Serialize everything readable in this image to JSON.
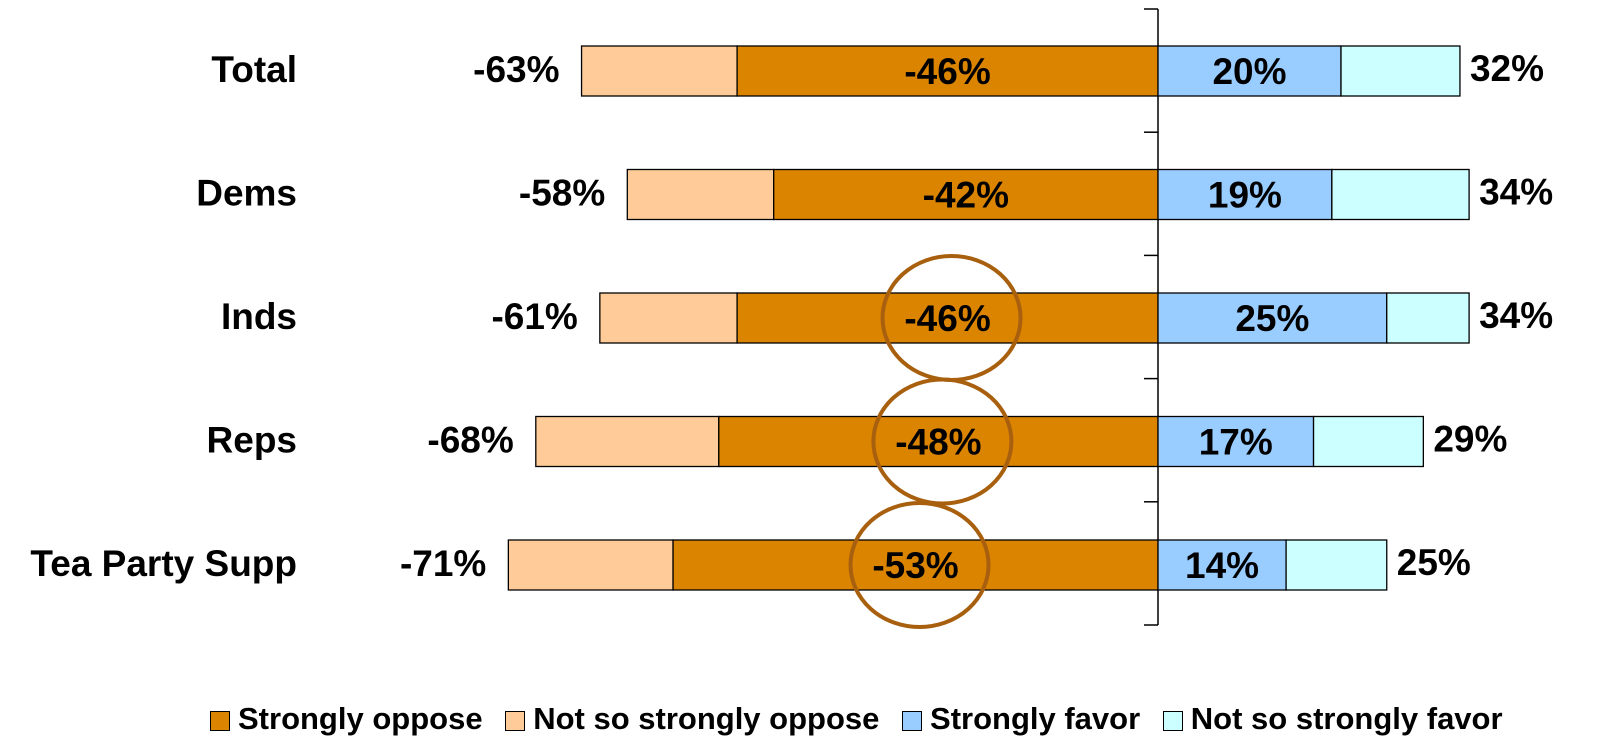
{
  "chart_data": {
    "type": "bar",
    "orientation": "horizontal",
    "stacked": "diverging",
    "categories": [
      "Total",
      "Dems",
      "Inds",
      "Reps",
      "Tea Party Supp"
    ],
    "series": [
      {
        "name": "Strongly oppose",
        "values": [
          -46,
          -42,
          -46,
          -48,
          -53
        ],
        "color": "#DB8400"
      },
      {
        "name": "Not so strongly oppose",
        "values": [
          -17,
          -16,
          -15,
          -20,
          -18
        ],
        "color": "#FFCC99"
      },
      {
        "name": "Strongly favor",
        "values": [
          20,
          19,
          25,
          17,
          14
        ],
        "color": "#99CCFF"
      },
      {
        "name": "Not so strongly favor",
        "values": [
          13,
          15,
          9,
          12,
          11
        ],
        "color": "#CCFFFF"
      }
    ],
    "labels": {
      "strong_oppose": [
        "-46%",
        "-42%",
        "-46%",
        "-48%",
        "-53%"
      ],
      "total_oppose": [
        "-63%",
        "-58%",
        "-61%",
        "-68%",
        "-71%"
      ],
      "strong_favor": [
        "20%",
        "19%",
        "25%",
        "17%",
        "14%"
      ],
      "total_favor": [
        "32%",
        "34%",
        "34%",
        "29%",
        "25%"
      ]
    },
    "highlighted_categories": [
      "Inds",
      "Reps",
      "Tea Party Supp"
    ],
    "highlight_color": "#A8600E",
    "legend": {
      "position": "bottom",
      "items": [
        "Strongly oppose",
        "Not so strongly oppose",
        "Strongly favor",
        "Not so strongly favor"
      ]
    }
  }
}
